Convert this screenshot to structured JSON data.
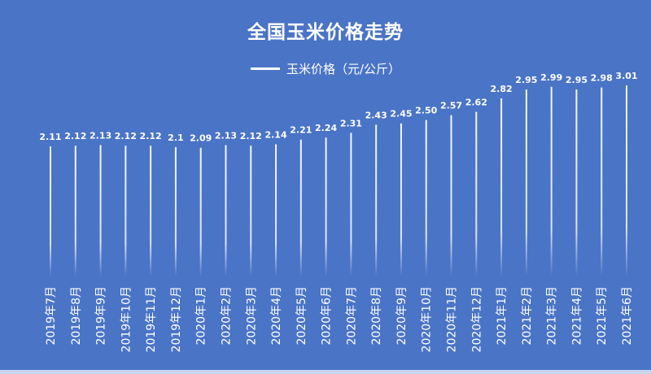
{
  "chart_data": {
    "type": "bar",
    "title": "全国玉米价格走势",
    "legend": {
      "position": "top",
      "entries": [
        "玉米价格（元/公斤）"
      ]
    },
    "categories": [
      "2019年7月",
      "2019年8月",
      "2019年9月",
      "2019年10月",
      "2019年11月",
      "2019年12月",
      "2020年1月",
      "2020年2月",
      "2020年3月",
      "2020年4月",
      "2020年5月",
      "2020年6月",
      "2020年7月",
      "2020年8月",
      "2020年9月",
      "2020年10月",
      "2020年11月",
      "2020年12月",
      "2021年1月",
      "2021年2月",
      "2021年3月",
      "2021年4月",
      "2021年5月",
      "2021年6月"
    ],
    "series": [
      {
        "name": "玉米价格（元/公斤）",
        "values": [
          2.11,
          2.12,
          2.13,
          2.12,
          2.12,
          2.1,
          2.09,
          2.13,
          2.12,
          2.14,
          2.21,
          2.24,
          2.31,
          2.43,
          2.45,
          2.5,
          2.57,
          2.62,
          2.82,
          2.95,
          2.99,
          2.95,
          2.98,
          3.01
        ]
      }
    ],
    "value_labels": [
      "2.11",
      "2.12",
      "2.13",
      "2.12",
      "2.12",
      "2.1",
      "2.09",
      "2.13",
      "2.12",
      "2.14",
      "2.21",
      "2.24",
      "2.31",
      "2.43",
      "2.45",
      "2.50",
      "2.57",
      "2.62",
      "2.82",
      "2.95",
      "2.99",
      "2.95",
      "2.98",
      "3.01"
    ],
    "grid": false,
    "colors": {
      "background": "#4a74c6",
      "bar": "#ffffff",
      "text": "#ffffff"
    }
  }
}
